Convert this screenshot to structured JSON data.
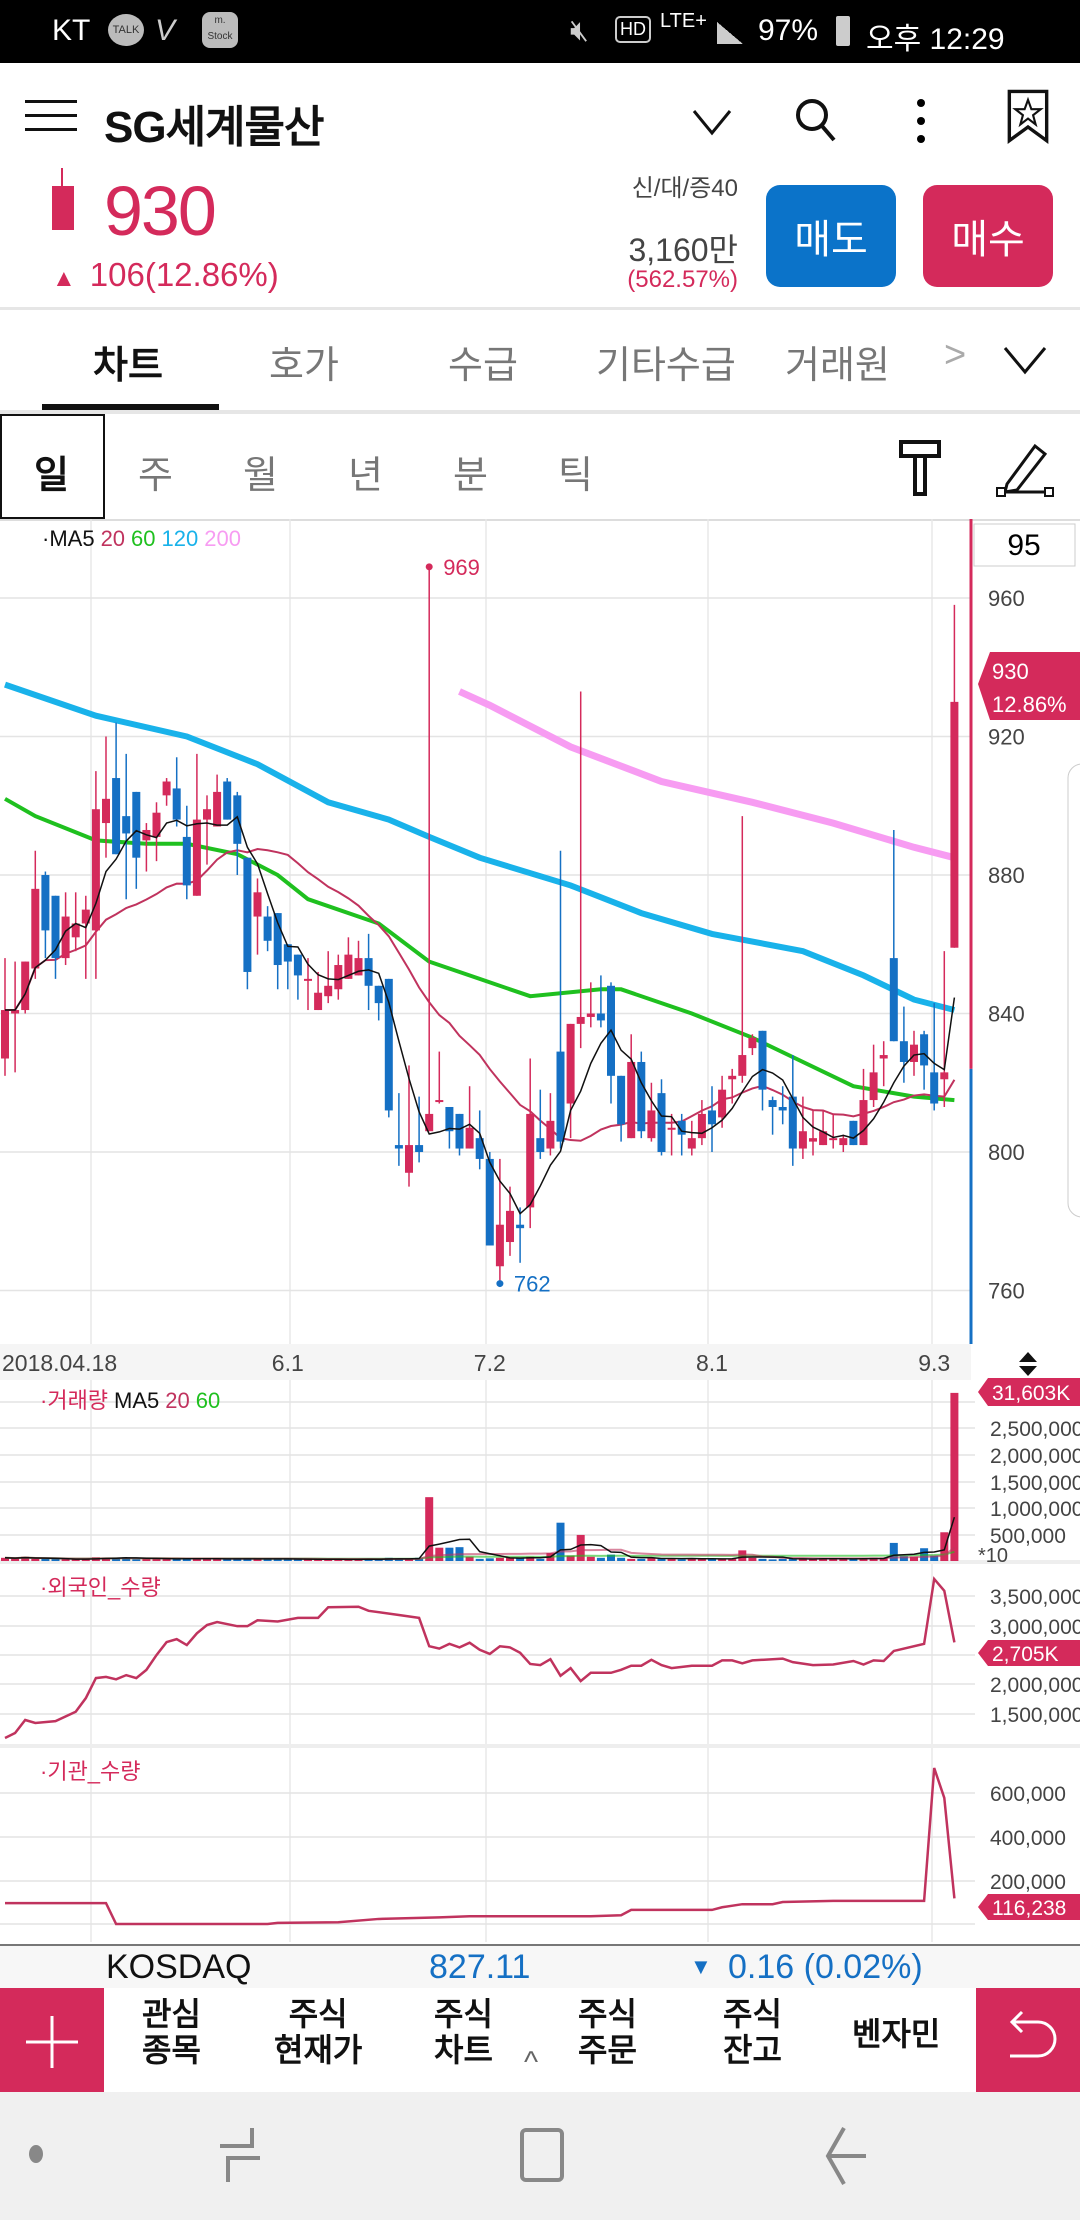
{
  "status_bar": {
    "carrier": "KT",
    "icons_left": [
      "talk-icon",
      "v-icon",
      "mstock-icon"
    ],
    "mstock_label": "m.\nStock",
    "talk_label": "TALK",
    "battery": "97%",
    "time": "오후 12:29",
    "network": "LTE+",
    "hd": "HD"
  },
  "header": {
    "title": "SG세계물산",
    "price": "930",
    "change": "106(12.86%)",
    "change_arrow": "▲",
    "vi_label": "신/대/증40",
    "volume": "3,160만",
    "volume_ratio": "(562.57%)",
    "sell_label": "매도",
    "buy_label": "매수"
  },
  "tabs": [
    {
      "label": "차트",
      "active": true
    },
    {
      "label": "호가"
    },
    {
      "label": "수급"
    },
    {
      "label": "기타수급"
    },
    {
      "label": "거래원"
    }
  ],
  "tabs_more": ">",
  "periods": [
    {
      "label": "일",
      "active": true
    },
    {
      "label": "주"
    },
    {
      "label": "월"
    },
    {
      "label": "년"
    },
    {
      "label": "분"
    },
    {
      "label": "틱"
    }
  ],
  "colors": {
    "up": "#d42a5b",
    "down": "#1570c4",
    "ma5": "#111111",
    "ma20": "#c0335e",
    "ma60": "#1fc01f",
    "ma120": "#19b2ea",
    "ma200": "#f79cf2",
    "sell": "#0b73c9",
    "buy": "#d42a5b"
  },
  "chart_data": [
    {
      "type": "candlestick",
      "legend": {
        "prefix": "·MA5",
        "ma20": "20",
        "ma60": "60",
        "ma120": "120",
        "ma200": "200"
      },
      "candle_count": "95",
      "y_ticks": [
        "960",
        "920",
        "880",
        "840",
        "800",
        "760"
      ],
      "x_labels": [
        {
          "idx": 0,
          "label": "2018.04.18"
        },
        {
          "idx": 28,
          "label": "6.1"
        },
        {
          "idx": 48,
          "label": "7.2"
        },
        {
          "idx": 70,
          "label": "8.1"
        },
        {
          "idx": 92,
          "label": "9.3"
        }
      ],
      "prev_close": 824,
      "current_tag": {
        "price": "930",
        "pct": "12.86%"
      },
      "max_label": {
        "idx": 42,
        "value": "969"
      },
      "min_label": {
        "idx": 49,
        "value": "762"
      },
      "ohlc": [
        [
          827,
          856,
          822,
          841
        ],
        [
          840,
          855,
          823,
          841
        ],
        [
          841,
          855,
          840,
          855
        ],
        [
          853,
          887,
          850,
          876
        ],
        [
          880,
          881,
          856,
          864
        ],
        [
          874,
          874,
          850,
          856
        ],
        [
          856,
          875,
          854,
          868
        ],
        [
          862,
          875,
          858,
          866
        ],
        [
          866,
          874,
          850,
          870
        ],
        [
          864,
          910,
          850,
          899
        ],
        [
          895,
          920,
          885,
          902
        ],
        [
          908,
          924,
          886,
          886
        ],
        [
          897,
          915,
          873,
          892
        ],
        [
          904,
          904,
          876,
          885
        ],
        [
          890,
          895,
          881,
          893
        ],
        [
          891,
          901,
          884,
          898
        ],
        [
          903,
          908,
          900,
          907
        ],
        [
          905,
          914,
          894,
          896
        ],
        [
          891,
          900,
          873,
          877
        ],
        [
          874,
          915,
          874,
          896
        ],
        [
          896,
          903,
          883,
          899
        ],
        [
          894,
          909,
          894,
          904
        ],
        [
          907,
          908,
          896,
          896
        ],
        [
          903,
          904,
          880,
          889
        ],
        [
          885,
          885,
          847,
          852
        ],
        [
          868,
          879,
          857,
          875
        ],
        [
          868,
          871,
          858,
          861
        ],
        [
          869,
          869,
          847,
          854
        ],
        [
          860,
          860,
          847,
          855
        ],
        [
          857,
          857,
          844,
          851
        ],
        [
          850,
          856,
          841,
          850
        ],
        [
          841,
          852,
          841,
          846
        ],
        [
          845,
          858,
          843,
          848
        ],
        [
          847,
          857,
          844,
          854
        ],
        [
          850,
          862,
          850,
          857
        ],
        [
          851,
          861,
          851,
          856
        ],
        [
          856,
          863,
          841,
          848
        ],
        [
          848,
          848,
          838,
          843
        ],
        [
          850,
          850,
          810,
          812
        ],
        [
          802,
          817,
          796,
          801
        ],
        [
          794,
          825,
          790,
          802
        ],
        [
          802,
          816,
          797,
          800
        ],
        [
          806,
          969,
          806,
          811
        ],
        [
          815,
          829,
          814,
          815
        ],
        [
          813,
          813,
          801,
          806
        ],
        [
          811,
          811,
          799,
          801
        ],
        [
          801,
          819,
          801,
          807
        ],
        [
          804,
          812,
          795,
          798
        ],
        [
          798,
          800,
          773,
          773
        ],
        [
          767,
          798,
          762,
          779
        ],
        [
          774,
          790,
          770,
          783
        ],
        [
          779,
          784,
          768,
          778
        ],
        [
          784,
          827,
          778,
          811
        ],
        [
          804,
          818,
          798,
          800
        ],
        [
          801,
          817,
          799,
          809
        ],
        [
          829,
          887,
          801,
          803
        ],
        [
          814,
          837,
          804,
          837
        ],
        [
          837,
          933,
          830,
          839
        ],
        [
          839,
          849,
          836,
          840
        ],
        [
          840,
          851,
          836,
          838
        ],
        [
          848,
          849,
          814,
          822
        ],
        [
          822,
          822,
          803,
          808
        ],
        [
          804,
          834,
          804,
          826
        ],
        [
          826,
          829,
          804,
          806
        ],
        [
          804,
          820,
          803,
          812
        ],
        [
          817,
          821,
          799,
          800
        ],
        [
          807,
          811,
          799,
          807
        ],
        [
          809,
          811,
          799,
          805
        ],
        [
          801,
          809,
          799,
          804
        ],
        [
          804,
          815,
          802,
          811
        ],
        [
          812,
          819,
          800,
          808
        ],
        [
          810,
          822,
          807,
          818
        ],
        [
          821,
          824,
          814,
          822
        ],
        [
          822,
          897,
          820,
          828
        ],
        [
          830,
          834,
          828,
          833
        ],
        [
          835,
          835,
          812,
          818
        ],
        [
          815,
          816,
          805,
          813
        ],
        [
          813,
          819,
          808,
          812
        ],
        [
          816,
          828,
          796,
          801
        ],
        [
          801,
          816,
          798,
          806
        ],
        [
          803,
          812,
          799,
          804
        ],
        [
          802,
          812,
          802,
          806
        ],
        [
          804,
          811,
          801,
          804
        ],
        [
          802,
          805,
          800,
          804
        ],
        [
          809,
          809,
          802,
          802
        ],
        [
          802,
          824,
          802,
          815
        ],
        [
          815,
          831,
          813,
          823
        ],
        [
          827,
          832,
          819,
          828
        ],
        [
          856,
          893,
          832,
          832
        ],
        [
          832,
          842,
          820,
          826
        ],
        [
          826,
          835,
          822,
          831
        ],
        [
          834,
          835,
          818,
          825
        ],
        [
          823,
          843,
          812,
          814
        ],
        [
          821,
          858,
          813,
          823
        ],
        [
          859,
          958,
          859,
          930
        ]
      ],
      "ma60": [
        [
          0,
          902
        ],
        [
          3,
          897
        ],
        [
          9,
          890
        ],
        [
          14,
          889
        ],
        [
          18,
          889
        ],
        [
          23,
          886
        ],
        [
          27,
          880
        ],
        [
          30,
          873
        ],
        [
          37,
          866
        ],
        [
          42,
          855
        ],
        [
          47,
          850
        ],
        [
          52,
          845
        ],
        [
          59,
          847
        ],
        [
          61,
          847
        ],
        [
          68,
          840
        ],
        [
          74,
          833
        ],
        [
          84,
          819
        ],
        [
          90,
          816
        ],
        [
          94,
          815
        ]
      ],
      "ma120": [
        [
          0,
          935
        ],
        [
          9,
          926
        ],
        [
          18,
          920
        ],
        [
          25,
          912
        ],
        [
          32,
          901
        ],
        [
          38,
          896
        ],
        [
          42,
          891
        ],
        [
          47,
          885
        ],
        [
          56,
          877
        ],
        [
          63,
          869
        ],
        [
          70,
          863
        ],
        [
          79,
          858
        ],
        [
          85,
          851
        ],
        [
          90,
          844
        ],
        [
          94,
          841
        ]
      ],
      "ma200": [
        [
          45,
          933
        ],
        [
          48,
          929
        ],
        [
          56,
          917
        ],
        [
          65,
          907
        ],
        [
          74,
          901
        ],
        [
          82,
          895
        ],
        [
          90,
          888
        ],
        [
          94,
          885
        ]
      ]
    },
    {
      "type": "bar",
      "legend": {
        "prefix": "·거래량",
        "ma5": "MA5",
        "ma20": "20",
        "ma60": "60"
      },
      "y_ticks": [
        "2,500,000",
        "2,000,000",
        "1,500,000",
        "1,000,000",
        "500,000"
      ],
      "multiplier": "*10",
      "current_tag": "31,603K",
      "values_k": [
        60,
        50,
        80,
        40,
        40,
        35,
        30,
        30,
        40,
        70,
        60,
        60,
        70,
        30,
        40,
        45,
        40,
        50,
        35,
        45,
        40,
        40,
        35,
        40,
        50,
        35,
        40,
        40,
        30,
        40,
        30,
        30,
        30,
        30,
        30,
        35,
        35,
        30,
        60,
        40,
        40,
        60,
        1200,
        250,
        250,
        260,
        80,
        40,
        50,
        60,
        60,
        60,
        80,
        40,
        150,
        720,
        100,
        490,
        80,
        60,
        120,
        60,
        40,
        40,
        60,
        40,
        50,
        30,
        50,
        40,
        40,
        40,
        40,
        200,
        60,
        40,
        30,
        40,
        40,
        50,
        30,
        50,
        40,
        40,
        40,
        40,
        60,
        60,
        340,
        90,
        80,
        240,
        100,
        540,
        3160
      ]
    },
    {
      "type": "line",
      "legend": "·외국인_수량",
      "y_ticks": [
        "3,500,000",
        "3,000,000",
        "2,000,000",
        "1,500,000"
      ],
      "current_tag": "2,705K",
      "points": [
        [
          0,
          1085000
        ],
        [
          1,
          1170000
        ],
        [
          2,
          1390000
        ],
        [
          3,
          1340000
        ],
        [
          5,
          1370000
        ],
        [
          7,
          1530000
        ],
        [
          8,
          1760000
        ],
        [
          9,
          2100000
        ],
        [
          10,
          2120000
        ],
        [
          11,
          2080000
        ],
        [
          12,
          2150000
        ],
        [
          13,
          2100000
        ],
        [
          14,
          2240000
        ],
        [
          15,
          2490000
        ],
        [
          16,
          2710000
        ],
        [
          17,
          2760000
        ],
        [
          18,
          2660000
        ],
        [
          19,
          2860000
        ],
        [
          20,
          3000000
        ],
        [
          21,
          3050000
        ],
        [
          23,
          2980000
        ],
        [
          24,
          2980000
        ],
        [
          25,
          3080000
        ],
        [
          27,
          3060000
        ],
        [
          29,
          3120000
        ],
        [
          31,
          3120000
        ],
        [
          32,
          3300000
        ],
        [
          35,
          3310000
        ],
        [
          36,
          3240000
        ],
        [
          39,
          3170000
        ],
        [
          41,
          3120000
        ],
        [
          42,
          2640000
        ],
        [
          43,
          2600000
        ],
        [
          44,
          2680000
        ],
        [
          45,
          2620000
        ],
        [
          46,
          2700000
        ],
        [
          47,
          2580000
        ],
        [
          48,
          2510000
        ],
        [
          49,
          2640000
        ],
        [
          50,
          2620000
        ],
        [
          51,
          2530000
        ],
        [
          52,
          2340000
        ],
        [
          53,
          2320000
        ],
        [
          54,
          2420000
        ],
        [
          55,
          2140000
        ],
        [
          56,
          2270000
        ],
        [
          57,
          2050000
        ],
        [
          58,
          2190000
        ],
        [
          60,
          2190000
        ],
        [
          61,
          2240000
        ],
        [
          62,
          2310000
        ],
        [
          63,
          2310000
        ],
        [
          64,
          2410000
        ],
        [
          65,
          2320000
        ],
        [
          66,
          2270000
        ],
        [
          68,
          2310000
        ],
        [
          70,
          2310000
        ],
        [
          71,
          2400000
        ],
        [
          72,
          2400000
        ],
        [
          73,
          2350000
        ],
        [
          74,
          2400000
        ],
        [
          77,
          2430000
        ],
        [
          78,
          2370000
        ],
        [
          80,
          2320000
        ],
        [
          82,
          2330000
        ],
        [
          84,
          2390000
        ],
        [
          85,
          2330000
        ],
        [
          86,
          2400000
        ],
        [
          87,
          2390000
        ],
        [
          88,
          2560000
        ],
        [
          91,
          2680000
        ],
        [
          92,
          3780000
        ],
        [
          93,
          3580000
        ],
        [
          94,
          2705000
        ]
      ]
    },
    {
      "type": "line",
      "legend": "·기관_수량",
      "y_ticks": [
        "600,000",
        "400,000",
        "200,000"
      ],
      "current_tag": "116,238",
      "points": [
        [
          0,
          95000
        ],
        [
          10,
          95000
        ],
        [
          11,
          0
        ],
        [
          19,
          0
        ],
        [
          26,
          0
        ],
        [
          27,
          5000
        ],
        [
          33,
          8000
        ],
        [
          37,
          23000
        ],
        [
          43,
          30000
        ],
        [
          46,
          35000
        ],
        [
          58,
          35000
        ],
        [
          61,
          40000
        ],
        [
          62,
          64000
        ],
        [
          70,
          64000
        ],
        [
          71,
          76000
        ],
        [
          73,
          90000
        ],
        [
          76,
          90000
        ],
        [
          77,
          100000
        ],
        [
          82,
          105000
        ],
        [
          91,
          105000
        ],
        [
          92,
          709000
        ],
        [
          93,
          573000
        ],
        [
          94,
          116238
        ]
      ]
    }
  ],
  "kosdaq": {
    "name": "KOSDAQ",
    "value": "827.11",
    "arrow": "▼",
    "change": "0.16 (0.02%)"
  },
  "menu": {
    "items": [
      "관심\n종목",
      "주식\n현재가",
      "주식\n차트",
      "주식\n주문",
      "주식\n잔고",
      "벤자민"
    ],
    "expand": "^"
  }
}
